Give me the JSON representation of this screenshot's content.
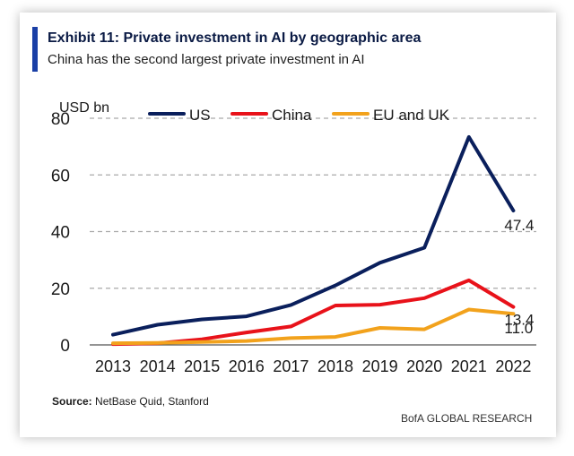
{
  "header": {
    "title": "Exhibit 11: Private investment in AI by geographic area",
    "subtitle": "China has the second largest private investment in AI"
  },
  "footer": {
    "source_label": "Source:",
    "source_text": "NetBase Quid, Stanford",
    "credit": "BofA GLOBAL RESEARCH"
  },
  "chart_data": {
    "type": "line",
    "title": "Private investment in AI by geographic area",
    "ylabel": "USD bn",
    "xlabel": "",
    "ylim": [
      0,
      80
    ],
    "yticks": [
      "0",
      "20",
      "40",
      "60",
      "80"
    ],
    "categories": [
      "2013",
      "2014",
      "2015",
      "2016",
      "2017",
      "2018",
      "2019",
      "2020",
      "2021",
      "2022"
    ],
    "grid": true,
    "legend_position": "top",
    "series": [
      {
        "name": "US",
        "color": "#0a1f5c",
        "values": [
          3.6,
          7.1,
          9.0,
          10.1,
          14.1,
          21.0,
          29.0,
          34.3,
          73.4,
          47.4
        ],
        "end_label": "47.4"
      },
      {
        "name": "China",
        "color": "#e8121a",
        "values": [
          0.3,
          0.6,
          2.0,
          4.4,
          6.5,
          13.9,
          14.2,
          16.5,
          22.8,
          13.4
        ],
        "end_label": "13.4"
      },
      {
        "name": "EU and UK",
        "color": "#f2a21c",
        "values": [
          0.6,
          0.7,
          1.0,
          1.4,
          2.4,
          2.8,
          6.0,
          5.5,
          12.5,
          11.0
        ],
        "end_label": "11.0"
      }
    ]
  }
}
